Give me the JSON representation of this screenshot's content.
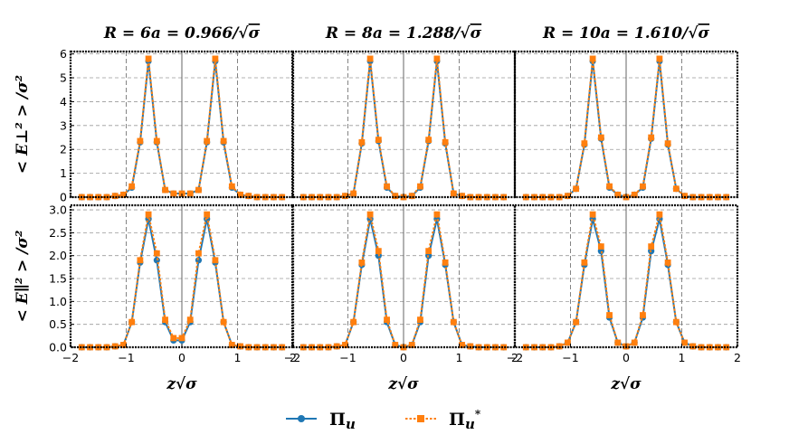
{
  "chart_data": {
    "type": "line",
    "x": [
      -1.8,
      -1.65,
      -1.5,
      -1.35,
      -1.2,
      -1.05,
      -0.9,
      -0.75,
      -0.6,
      -0.45,
      -0.3,
      -0.15,
      0,
      0.15,
      0.3,
      0.45,
      0.6,
      0.75,
      0.9,
      1.05,
      1.2,
      1.35,
      1.5,
      1.65,
      1.8
    ],
    "xlim": [
      -2,
      2
    ],
    "xticks": [
      "−2",
      "−1",
      "0",
      "1",
      "2"
    ],
    "xlabel": "z√σ",
    "grid": true,
    "legend_position": "bottom-center",
    "series_styles": [
      {
        "name": "Π_u",
        "label_main": "Π",
        "label_sub": "u",
        "label_sup": "",
        "color": "#1f77b4",
        "marker": "circle",
        "line": "solid"
      },
      {
        "name": "Π_u*",
        "label_main": "Π",
        "label_sub": "u",
        "label_sup": "*",
        "color": "#ff7f0e",
        "marker": "square",
        "line": "dotted"
      }
    ],
    "columns": [
      {
        "title": "R = 6a = 0.966/√σ",
        "title_lhs": "R",
        "title_mid": "= 6a = 0.966/",
        "title_root": "σ"
      },
      {
        "title": "R = 8a = 1.288/√σ",
        "title_lhs": "R",
        "title_mid": "= 8a = 1.288/",
        "title_root": "σ"
      },
      {
        "title": "R = 10a = 1.610/√σ",
        "title_lhs": "R",
        "title_mid": "= 10a = 1.610/",
        "title_root": "σ"
      }
    ],
    "rows": [
      {
        "ylabel": "< E⊥² > /σ²",
        "ylim": [
          0,
          6.1
        ],
        "yticks": [
          0,
          1,
          2,
          3,
          4,
          5,
          6
        ],
        "ytick_labels": [
          "0",
          "1",
          "2",
          "3",
          "4",
          "5",
          "6"
        ]
      },
      {
        "ylabel": "< E∥² > /σ²",
        "ylim": [
          0,
          3.1
        ],
        "yticks": [
          0,
          0.5,
          1.0,
          1.5,
          2.0,
          2.5,
          3.0
        ],
        "ytick_labels": [
          "0.0",
          "0.5",
          "1.0",
          "1.5",
          "2.0",
          "2.5",
          "3.0"
        ]
      }
    ],
    "panels": [
      {
        "row": 0,
        "col": 0,
        "vlines": [
          -1,
          1
        ],
        "series": [
          {
            "name": "Π_u",
            "values": [
              0,
              0,
              0,
              0,
              0.05,
              0.1,
              0.4,
              2.3,
              5.7,
              2.3,
              0.3,
              0.15,
              0.15,
              0.15,
              0.3,
              2.3,
              5.7,
              2.3,
              0.4,
              0.1,
              0.05,
              0,
              0,
              0,
              0
            ]
          },
          {
            "name": "Π_u*",
            "values": [
              0,
              0,
              0,
              0,
              0.05,
              0.1,
              0.45,
              2.35,
              5.8,
              2.35,
              0.3,
              0.15,
              0.15,
              0.15,
              0.3,
              2.35,
              5.8,
              2.35,
              0.45,
              0.1,
              0.05,
              0,
              0,
              0,
              0
            ]
          }
        ]
      },
      {
        "row": 0,
        "col": 1,
        "vlines": [
          -1,
          1
        ],
        "series": [
          {
            "name": "Π_u",
            "values": [
              0,
              0,
              0,
              0,
              0,
              0.05,
              0.15,
              2.25,
              5.7,
              2.35,
              0.4,
              0.05,
              0,
              0.05,
              0.4,
              2.35,
              5.7,
              2.25,
              0.15,
              0.05,
              0,
              0,
              0,
              0,
              0
            ]
          },
          {
            "name": "Π_u*",
            "values": [
              0,
              0,
              0,
              0,
              0,
              0.05,
              0.15,
              2.3,
              5.8,
              2.4,
              0.45,
              0.05,
              0,
              0.05,
              0.45,
              2.4,
              5.8,
              2.3,
              0.15,
              0.05,
              0,
              0,
              0,
              0,
              0
            ]
          }
        ]
      },
      {
        "row": 0,
        "col": 2,
        "vlines": [
          -1,
          1
        ],
        "series": [
          {
            "name": "Π_u",
            "values": [
              0,
              0,
              0,
              0,
              0,
              0.05,
              0.35,
              2.2,
              5.7,
              2.45,
              0.4,
              0.1,
              0,
              0.1,
              0.4,
              2.45,
              5.7,
              2.2,
              0.35,
              0.05,
              0,
              0,
              0,
              0,
              0
            ]
          },
          {
            "name": "Π_u*",
            "values": [
              0,
              0,
              0,
              0,
              0,
              0.05,
              0.35,
              2.25,
              5.8,
              2.5,
              0.45,
              0.1,
              0,
              0.1,
              0.45,
              2.5,
              5.8,
              2.25,
              0.35,
              0.05,
              0,
              0,
              0,
              0,
              0
            ]
          }
        ]
      },
      {
        "row": 1,
        "col": 0,
        "vlines": [
          -1,
          1
        ],
        "series": [
          {
            "name": "Π_u",
            "values": [
              0,
              0,
              0,
              0,
              0.02,
              0.05,
              0.55,
              1.85,
              2.8,
              1.9,
              0.55,
              0.15,
              0.15,
              0.55,
              1.9,
              2.8,
              1.85,
              0.55,
              0.05,
              0.02,
              0,
              0,
              0,
              0,
              0
            ]
          },
          {
            "name": "Π_u*",
            "values": [
              0,
              0,
              0,
              0,
              0.02,
              0.05,
              0.55,
              1.9,
              2.9,
              2.05,
              0.6,
              0.2,
              0.2,
              0.6,
              2.05,
              2.9,
              1.9,
              0.55,
              0.05,
              0.02,
              0,
              0,
              0,
              0,
              0
            ]
          }
        ]
      },
      {
        "row": 1,
        "col": 1,
        "vlines": [
          -1,
          1
        ],
        "series": [
          {
            "name": "Π_u",
            "values": [
              0,
              0,
              0,
              0,
              0.02,
              0.05,
              0.55,
              1.8,
              2.8,
              2.0,
              0.55,
              0.05,
              0,
              0.05,
              0.55,
              2.0,
              2.8,
              1.8,
              0.55,
              0.05,
              0.02,
              0,
              0,
              0,
              0
            ]
          },
          {
            "name": "Π_u*",
            "values": [
              0,
              0,
              0,
              0,
              0.02,
              0.05,
              0.55,
              1.85,
              2.9,
              2.1,
              0.6,
              0.05,
              0,
              0.05,
              0.6,
              2.1,
              2.9,
              1.85,
              0.55,
              0.05,
              0.02,
              0,
              0,
              0,
              0
            ]
          }
        ]
      },
      {
        "row": 1,
        "col": 2,
        "vlines": [
          -1,
          1
        ],
        "series": [
          {
            "name": "Π_u",
            "values": [
              0,
              0,
              0,
              0,
              0.02,
              0.1,
              0.55,
              1.8,
              2.8,
              2.1,
              0.65,
              0.1,
              0.02,
              0.1,
              0.65,
              2.1,
              2.8,
              1.8,
              0.55,
              0.1,
              0.02,
              0,
              0,
              0,
              0
            ]
          },
          {
            "name": "Π_u*",
            "values": [
              0,
              0,
              0,
              0,
              0.02,
              0.1,
              0.55,
              1.85,
              2.9,
              2.2,
              0.7,
              0.1,
              0.02,
              0.1,
              0.7,
              2.2,
              2.9,
              1.85,
              0.55,
              0.1,
              0.02,
              0,
              0,
              0,
              0
            ]
          }
        ]
      }
    ]
  }
}
